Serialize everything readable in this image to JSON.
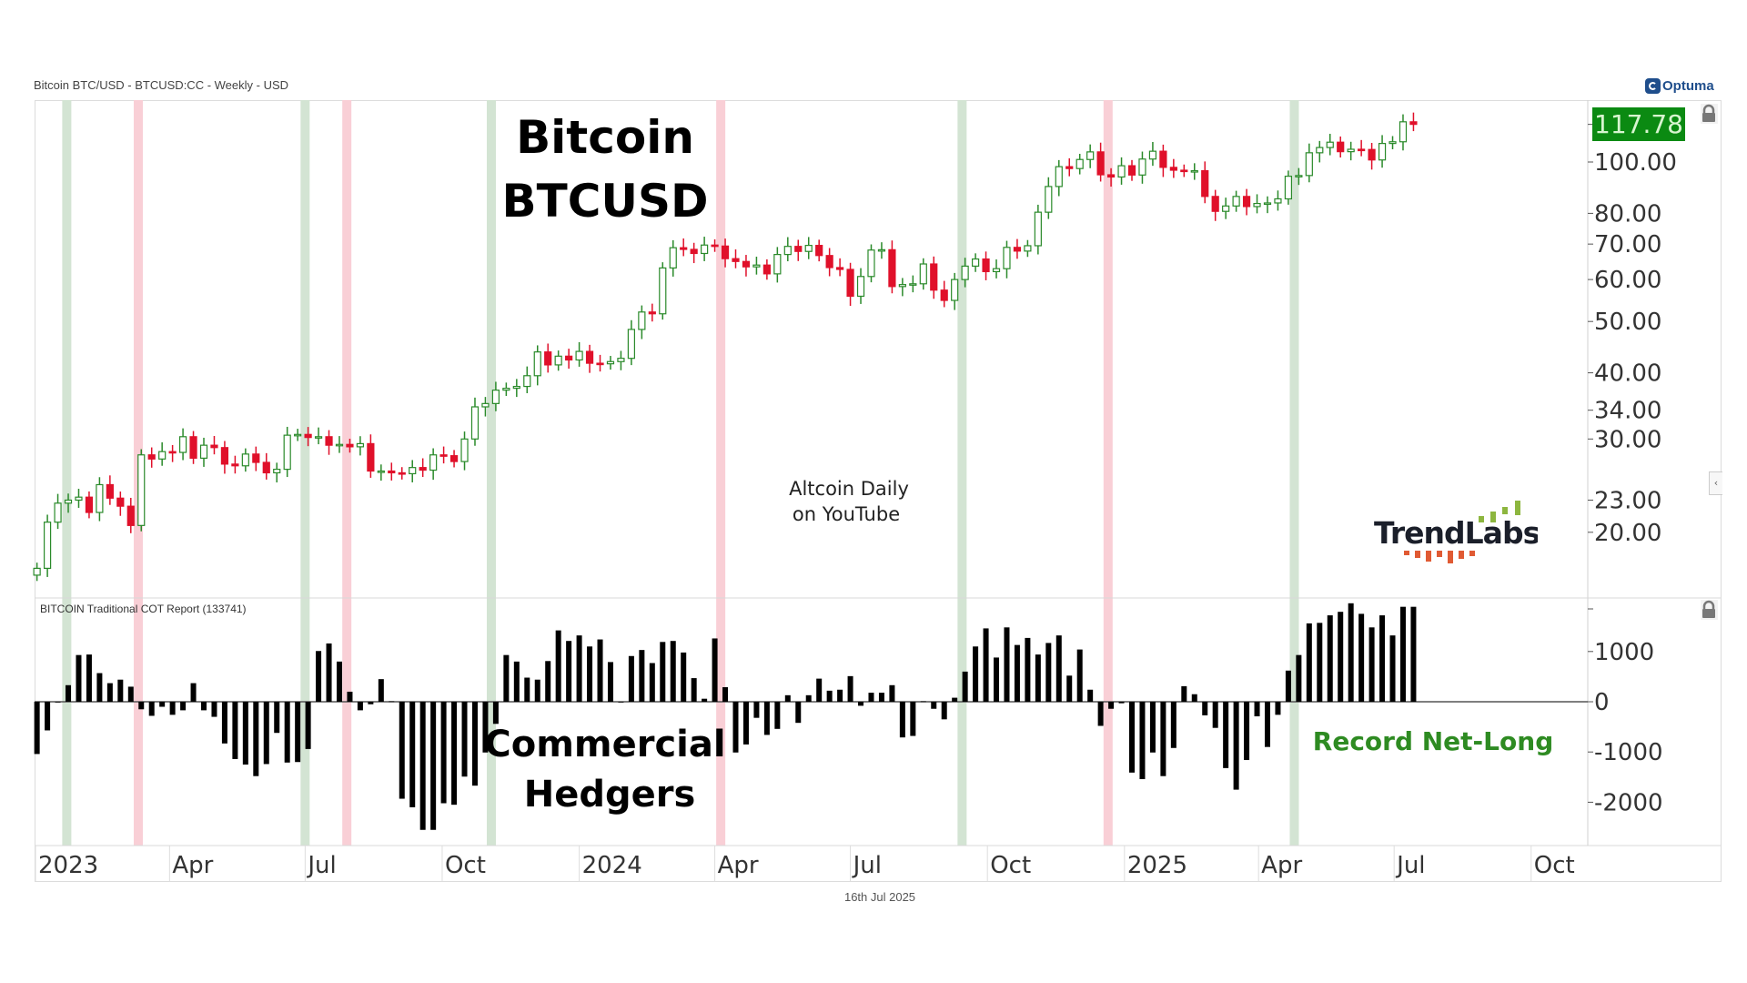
{
  "header": {
    "title": "Bitcoin BTC/USD - BTCUSD:CC - Weekly - USD",
    "brand": "Optuma",
    "footer_date": "16th Jul 2025"
  },
  "annotations": {
    "title_line1": "Bitcoin",
    "title_line2": "BTCUSD",
    "watermark_line1": "Altcoin Daily",
    "watermark_line2": "on YouTube",
    "hedgers_line1": "Commercial",
    "hedgers_line2": "Hedgers",
    "record": "Record Net-Long",
    "logo": "TrendLabs"
  },
  "icons": {
    "lock": "lock-icon",
    "collapse": "chevron-left-icon",
    "brand": "optuma-logo"
  },
  "colors": {
    "up": "#2a8a2a",
    "down": "#e0102a",
    "band_green": "#d3e4d3",
    "band_red": "#f9cfd6",
    "last_price_bg": "#0b8a12",
    "record_text": "#2e8b22",
    "bar": "#000000"
  },
  "chart_data": [
    {
      "type": "candlestick",
      "name": "Bitcoin BTCUSD",
      "scale": "log",
      "interval": "weekly",
      "start_week": "2023-01-02",
      "first_open": 16.6,
      "last_price": "117.78",
      "yticks": [
        "100.00",
        "80.00",
        "70.00",
        "60.00",
        "50.00",
        "40.00",
        "34.00",
        "30.00",
        "23.00",
        "20.00"
      ],
      "close": [
        17.1,
        20.9,
        22.7,
        23.0,
        23.3,
        21.8,
        24.6,
        23.2,
        22.4,
        20.6,
        28.0,
        27.5,
        28.4,
        28.3,
        30.3,
        27.6,
        29.2,
        28.9,
        26.9,
        26.7,
        28.1,
        27.1,
        25.9,
        26.3,
        30.5,
        30.6,
        30.2,
        30.3,
        29.2,
        29.3,
        29.0,
        29.4,
        26.1,
        26.1,
        25.9,
        25.8,
        26.5,
        26.2,
        28.0,
        27.9,
        27.2,
        30.0,
        34.5,
        35.0,
        37.1,
        37.4,
        37.7,
        39.5,
        43.8,
        41.4,
        43.0,
        42.3,
        43.9,
        41.7,
        41.6,
        42.0,
        42.6,
        48.3,
        52.1,
        51.7,
        63.1,
        68.9,
        68.4,
        67.2,
        69.7,
        69.4,
        65.7,
        64.9,
        63.4,
        63.9,
        61.5,
        66.9,
        69.3,
        67.8,
        69.6,
        66.6,
        63.2,
        62.7,
        55.8,
        60.8,
        68.2,
        68.3,
        58.2,
        58.7,
        58.9,
        64.2,
        57.3,
        54.8,
        60.0,
        63.6,
        65.6,
        62.1,
        62.9,
        69.0,
        67.9,
        69.5,
        80.4,
        89.9,
        98.0,
        97.2,
        101.1,
        104.5,
        94.6,
        93.7,
        98.4,
        94.5,
        101.3,
        104.8,
        97.7,
        96.5,
        96.1,
        96.3,
        86.1,
        80.7,
        82.6,
        86.1,
        82.4,
        83.5,
        83.7,
        85.2,
        94.0,
        94.3,
        104.1,
        106.5,
        109.0,
        104.6,
        105.7,
        105.6,
        100.9,
        108.4,
        109.2,
        119.1,
        117.78
      ]
    },
    {
      "type": "bar",
      "name": "BITCOIN Traditional COT Report (133741)",
      "interval": "weekly",
      "start_week": "2023-01-02",
      "yticks": [
        "1000",
        "0",
        "-1000",
        "-2000"
      ],
      "values": [
        -1040,
        -570,
        -10,
        330,
        930,
        940,
        570,
        370,
        440,
        300,
        -150,
        -280,
        -100,
        -260,
        -170,
        370,
        -170,
        -300,
        -830,
        -1140,
        -1250,
        -1480,
        -1240,
        -620,
        -1210,
        -1200,
        -940,
        1010,
        1160,
        800,
        200,
        -170,
        -50,
        450,
        10,
        -1930,
        -2100,
        -2550,
        -2550,
        -2020,
        -2050,
        -1490,
        -1670,
        -1010,
        -440,
        930,
        800,
        480,
        440,
        810,
        1420,
        1210,
        1320,
        1100,
        1240,
        790,
        0,
        910,
        1030,
        770,
        1190,
        1210,
        980,
        470,
        60,
        1260,
        290,
        -1010,
        -850,
        -320,
        -660,
        -540,
        130,
        -420,
        130,
        460,
        220,
        240,
        510,
        -80,
        180,
        180,
        330,
        -710,
        -680,
        10,
        -140,
        -350,
        80,
        600,
        1100,
        1460,
        880,
        1480,
        1130,
        1270,
        940,
        1170,
        1320,
        520,
        1040,
        240,
        -480,
        -140,
        -30,
        -1410,
        -1540,
        -1010,
        -1480,
        -920,
        310,
        150,
        -270,
        -520,
        -1320,
        -1750,
        -1160,
        -290,
        -900,
        -260,
        620,
        930,
        1560,
        1570,
        1720,
        1790,
        1960,
        1750,
        1480,
        1720,
        1320,
        1890,
        1890
      ]
    },
    {
      "type": "bands",
      "green": [
        "2023-01-22",
        "2023-07-01",
        "2023-11-03",
        "2024-09-14",
        "2025-04-25"
      ],
      "red": [
        "2023-03-11",
        "2023-07-29",
        "2024-04-05",
        "2024-12-21"
      ]
    },
    {
      "type": "xaxis",
      "ticks": [
        {
          "date": "2023-01-01",
          "label": "2023"
        },
        {
          "date": "2023-04-01",
          "label": "Apr"
        },
        {
          "date": "2023-07-01",
          "label": "Jul"
        },
        {
          "date": "2023-10-01",
          "label": "Oct"
        },
        {
          "date": "2024-01-01",
          "label": "2024"
        },
        {
          "date": "2024-04-01",
          "label": "Apr"
        },
        {
          "date": "2024-07-01",
          "label": "Jul"
        },
        {
          "date": "2024-10-01",
          "label": "Oct"
        },
        {
          "date": "2025-01-01",
          "label": "2025"
        },
        {
          "date": "2025-04-01",
          "label": "Apr"
        },
        {
          "date": "2025-07-01",
          "label": "Jul"
        },
        {
          "date": "2025-10-01",
          "label": "Oct"
        }
      ]
    }
  ]
}
